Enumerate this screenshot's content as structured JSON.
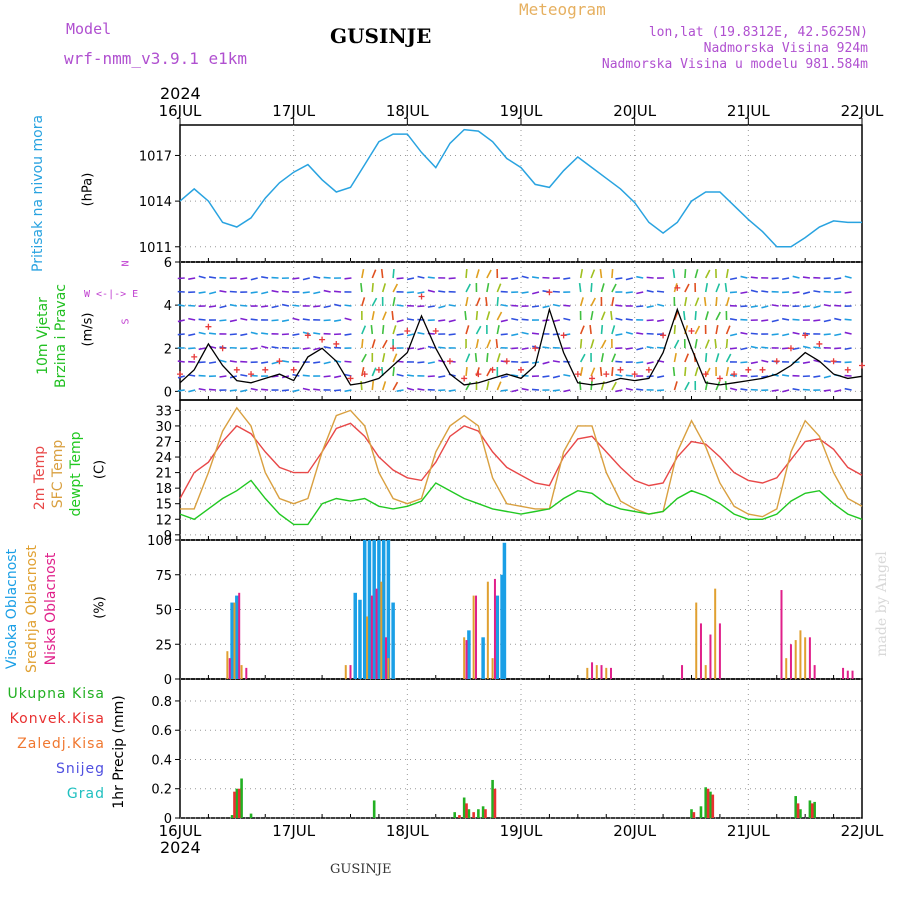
{
  "header": {
    "model_label": "Model",
    "model_name": "wrf-nmm_v3.9.1  e1km",
    "station": "GUSINJE",
    "meteogram": "Meteogram",
    "lonlat": "lon,lat (19.8312E, 42.5625N)",
    "elevation": "Nadmorska Visina 924m",
    "model_elevation": "Nadmorska Visina u modelu 981.584m",
    "footer_station": "GUSINJE",
    "credit": "made by Angel"
  },
  "time_axis": {
    "year": "2024",
    "labels": [
      "16JUL",
      "17JUL",
      "18JUL",
      "19JUL",
      "20JUL",
      "21JUL",
      "22JUL"
    ]
  },
  "colors": {
    "pressure": "#29a3e0",
    "wind_label": "#22c022",
    "wind_speed": "#000000",
    "gust": "#e83a3a",
    "t2m": "#e84848",
    "sfc": "#d9a040",
    "dew": "#22c822",
    "high_cloud": "#1a9fe6",
    "mid_cloud": "#e0a030",
    "low_cloud": "#e0208a",
    "total_precip": "#22b022",
    "convective": "#e83030",
    "freezing": "#f07830",
    "snow": "#5050e0",
    "hail": "#20c0c0",
    "arrow_legend": "#c040d0"
  },
  "chart_data": [
    {
      "type": "line",
      "panel": "pressure",
      "ylabel_main": "Pritisak na nivou mora",
      "ylabel_unit": "(hPa)",
      "yticks": [
        "1011",
        "1014",
        "1017"
      ],
      "ylim": [
        1010,
        1019
      ],
      "x": [
        0,
        3,
        6,
        9,
        12,
        15,
        18,
        21,
        24,
        27,
        30,
        33,
        36,
        39,
        42,
        45,
        48,
        51,
        54,
        57,
        60,
        63,
        66,
        69,
        72,
        75,
        78,
        81,
        84,
        87,
        90,
        93,
        96,
        99,
        102,
        105,
        108,
        111,
        114,
        117,
        120,
        123,
        126,
        129,
        132,
        135,
        138,
        141,
        144
      ],
      "values": [
        1014.0,
        1014.8,
        1014.0,
        1012.6,
        1012.3,
        1012.9,
        1014.2,
        1015.2,
        1015.9,
        1016.4,
        1015.4,
        1014.6,
        1014.9,
        1016.4,
        1017.9,
        1018.4,
        1018.4,
        1017.2,
        1016.2,
        1017.8,
        1018.7,
        1018.6,
        1017.9,
        1016.8,
        1016.2,
        1015.1,
        1014.9,
        1016.0,
        1016.9,
        1016.2,
        1015.5,
        1014.8,
        1013.9,
        1012.6,
        1011.9,
        1012.6,
        1014.0,
        1014.6,
        1014.6,
        1013.7,
        1012.8,
        1012.0,
        1011.0,
        1011.0,
        1011.6,
        1012.3,
        1012.7,
        1012.6,
        1012.6
      ]
    },
    {
      "type": "line",
      "panel": "wind",
      "ylabel_main": "10m Vjetar",
      "ylabel_main2": "Brzina i Pravac",
      "ylabel_unit": "(m/s)",
      "yticks": [
        "0",
        "2",
        "4",
        "6"
      ],
      "ylim": [
        -0.4,
        6
      ],
      "arrow_legend": [
        "N",
        "W <-|-> E",
        "S"
      ],
      "x": [
        0,
        3,
        6,
        9,
        12,
        15,
        18,
        21,
        24,
        27,
        30,
        33,
        36,
        39,
        42,
        45,
        48,
        51,
        54,
        57,
        60,
        63,
        66,
        69,
        72,
        75,
        78,
        81,
        84,
        87,
        90,
        93,
        96,
        99,
        102,
        105,
        108,
        111,
        114,
        117,
        120,
        123,
        126,
        129,
        132,
        135,
        138,
        141,
        144
      ],
      "series": [
        {
          "name": "speed",
          "values": [
            0.4,
            1.0,
            2.2,
            1.2,
            0.5,
            0.4,
            0.6,
            0.8,
            0.5,
            1.6,
            2.0,
            1.4,
            0.3,
            0.4,
            0.6,
            1.2,
            1.8,
            3.5,
            2.0,
            0.8,
            0.3,
            0.4,
            0.6,
            0.8,
            0.6,
            1.2,
            3.8,
            1.8,
            0.4,
            0.3,
            0.4,
            0.6,
            0.5,
            0.6,
            1.8,
            3.8,
            2.0,
            0.4,
            0.3,
            0.4,
            0.5,
            0.6,
            0.8,
            1.2,
            1.8,
            1.4,
            0.8,
            0.6,
            0.7
          ]
        },
        {
          "name": "gust",
          "values": [
            0.8,
            1.6,
            3.0,
            2.0,
            1.0,
            0.8,
            1.0,
            1.4,
            1.0,
            2.6,
            2.4,
            2.2,
            0.6,
            0.8,
            1.0,
            2.0,
            2.8,
            4.4,
            2.8,
            1.4,
            0.6,
            0.8,
            1.0,
            1.4,
            1.0,
            2.0,
            4.6,
            2.6,
            0.8,
            0.6,
            0.8,
            1.0,
            0.8,
            1.0,
            2.6,
            4.8,
            2.8,
            0.8,
            0.6,
            0.8,
            1.0,
            1.0,
            1.4,
            2.0,
            2.6,
            2.2,
            1.4,
            1.0,
            1.2
          ]
        }
      ]
    },
    {
      "type": "line",
      "panel": "temperature",
      "ylabel_main": "2m Temp",
      "ylabel_main2": "SFC Temp",
      "ylabel_main3": "dewpt Temp",
      "ylabel_unit": "(C)",
      "yticks": [
        "9",
        "12",
        "15",
        "18",
        "21",
        "24",
        "27",
        "30",
        "33"
      ],
      "ylim": [
        8,
        35
      ],
      "x": [
        0,
        3,
        6,
        9,
        12,
        15,
        18,
        21,
        24,
        27,
        30,
        33,
        36,
        39,
        42,
        45,
        48,
        51,
        54,
        57,
        60,
        63,
        66,
        69,
        72,
        75,
        78,
        81,
        84,
        87,
        90,
        93,
        96,
        99,
        102,
        105,
        108,
        111,
        114,
        117,
        120,
        123,
        126,
        129,
        132,
        135,
        138,
        141,
        144
      ],
      "series": [
        {
          "name": "2m Temp",
          "values": [
            16.0,
            21.0,
            23.0,
            27.0,
            30.0,
            28.5,
            25.0,
            22.0,
            21.0,
            21.0,
            25.0,
            29.5,
            30.5,
            28.0,
            24.0,
            21.5,
            20.0,
            19.5,
            23.0,
            28.0,
            30.0,
            29.0,
            25.0,
            22.0,
            20.5,
            19.0,
            18.5,
            24.0,
            27.5,
            28.0,
            25.0,
            22.0,
            19.5,
            18.5,
            19.0,
            24.0,
            27.0,
            26.5,
            24.0,
            21.0,
            19.5,
            19.0,
            20.0,
            23.5,
            27.0,
            27.5,
            25.5,
            22.0,
            20.5
          ]
        },
        {
          "name": "SFC Temp",
          "values": [
            14.0,
            14.0,
            21.0,
            29.0,
            33.5,
            30.0,
            21.0,
            16.0,
            15.0,
            16.0,
            25.0,
            32.0,
            33.0,
            30.0,
            21.0,
            16.0,
            15.0,
            16.0,
            25.0,
            30.0,
            32.0,
            30.0,
            20.0,
            15.0,
            14.5,
            14.0,
            14.0,
            25.0,
            30.0,
            30.0,
            21.0,
            15.5,
            14.0,
            13.0,
            13.5,
            25.0,
            31.0,
            26.0,
            19.0,
            14.5,
            13.0,
            12.5,
            14.0,
            25.0,
            31.0,
            28.0,
            21.0,
            16.0,
            14.5
          ]
        },
        {
          "name": "dewpt Temp",
          "values": [
            13.0,
            12.0,
            14.0,
            16.0,
            17.5,
            19.5,
            16.0,
            13.0,
            11.0,
            11.0,
            15.0,
            16.0,
            15.5,
            16.0,
            14.5,
            14.0,
            14.5,
            15.5,
            19.0,
            17.5,
            16.0,
            15.0,
            14.0,
            13.5,
            13.0,
            13.5,
            14.0,
            16.0,
            17.5,
            17.0,
            15.0,
            14.0,
            13.5,
            13.0,
            13.5,
            16.0,
            17.5,
            16.5,
            15.0,
            13.0,
            12.0,
            12.0,
            13.0,
            15.5,
            17.0,
            17.5,
            15.0,
            13.0,
            12.0
          ]
        }
      ]
    },
    {
      "type": "bar",
      "panel": "cloud",
      "ylabel_main": "Visoka Oblacnost",
      "ylabel_main2": "Srednja Oblacnost",
      "ylabel_main3": "Niska Oblacnost",
      "ylabel_unit": "(%)",
      "yticks": [
        "0",
        "25",
        "50",
        "75",
        "100"
      ],
      "ylim": [
        0,
        100
      ],
      "series": [
        {
          "name": "high",
          "x": [
            11,
            12,
            37,
            38,
            39,
            40,
            41,
            42,
            43,
            44,
            45,
            61,
            64,
            67,
            68,
            68.5
          ],
          "values": [
            55,
            60,
            62,
            57,
            100,
            100,
            100,
            100,
            100,
            100,
            55,
            35,
            30,
            60,
            75,
            98
          ]
        },
        {
          "name": "mid",
          "x": [
            10,
            11.5,
            13,
            35,
            39.5,
            42.5,
            44,
            60,
            62,
            65,
            66,
            86,
            88,
            90,
            109,
            111,
            113,
            128,
            130,
            131,
            132
          ],
          "values": [
            20,
            55,
            10,
            10,
            45,
            70,
            15,
            30,
            60,
            70,
            15,
            8,
            10,
            8,
            55,
            10,
            65,
            15,
            28,
            35,
            30
          ]
        },
        {
          "name": "low",
          "x": [
            10.5,
            12.5,
            14,
            36,
            40.5,
            41.5,
            43.5,
            60.5,
            62.5,
            66.5,
            87,
            89,
            91,
            106,
            110,
            112,
            114,
            127,
            129,
            133,
            134,
            140,
            141,
            142
          ],
          "values": [
            15,
            62,
            8,
            10,
            60,
            65,
            30,
            28,
            60,
            72,
            12,
            10,
            8,
            10,
            40,
            32,
            40,
            64,
            25,
            30,
            10,
            8,
            6,
            6
          ]
        }
      ]
    },
    {
      "type": "bar",
      "panel": "precip",
      "ylabel_main": "1hr Precip (mm)",
      "legend": [
        "Ukupna Kisa",
        "Konvek.Kisa",
        "Zaledj.Kisa",
        "Snijeg",
        "Grad"
      ],
      "yticks": [
        "0",
        "0.2",
        "0.4",
        "0.6",
        "0.8"
      ],
      "ylim": [
        0,
        0.95
      ],
      "series": [
        {
          "name": "Ukupna Kisa",
          "x": [
            11,
            12,
            13,
            15,
            41,
            58,
            60,
            61,
            63,
            64,
            66,
            108,
            110,
            111,
            112,
            130,
            131,
            133,
            134
          ],
          "values": [
            0.02,
            0.2,
            0.27,
            0.03,
            0.12,
            0.04,
            0.14,
            0.06,
            0.06,
            0.08,
            0.26,
            0.06,
            0.08,
            0.21,
            0.18,
            0.15,
            0.06,
            0.12,
            0.11
          ]
        },
        {
          "name": "Konvek.Kisa",
          "x": [
            11.5,
            12.5,
            59,
            60.5,
            62,
            64.5,
            66.5,
            108.5,
            111.5,
            112.5,
            130.5,
            133.5
          ],
          "values": [
            0.18,
            0.2,
            0.02,
            0.1,
            0.04,
            0.06,
            0.2,
            0.04,
            0.2,
            0.16,
            0.1,
            0.1
          ]
        }
      ]
    }
  ]
}
